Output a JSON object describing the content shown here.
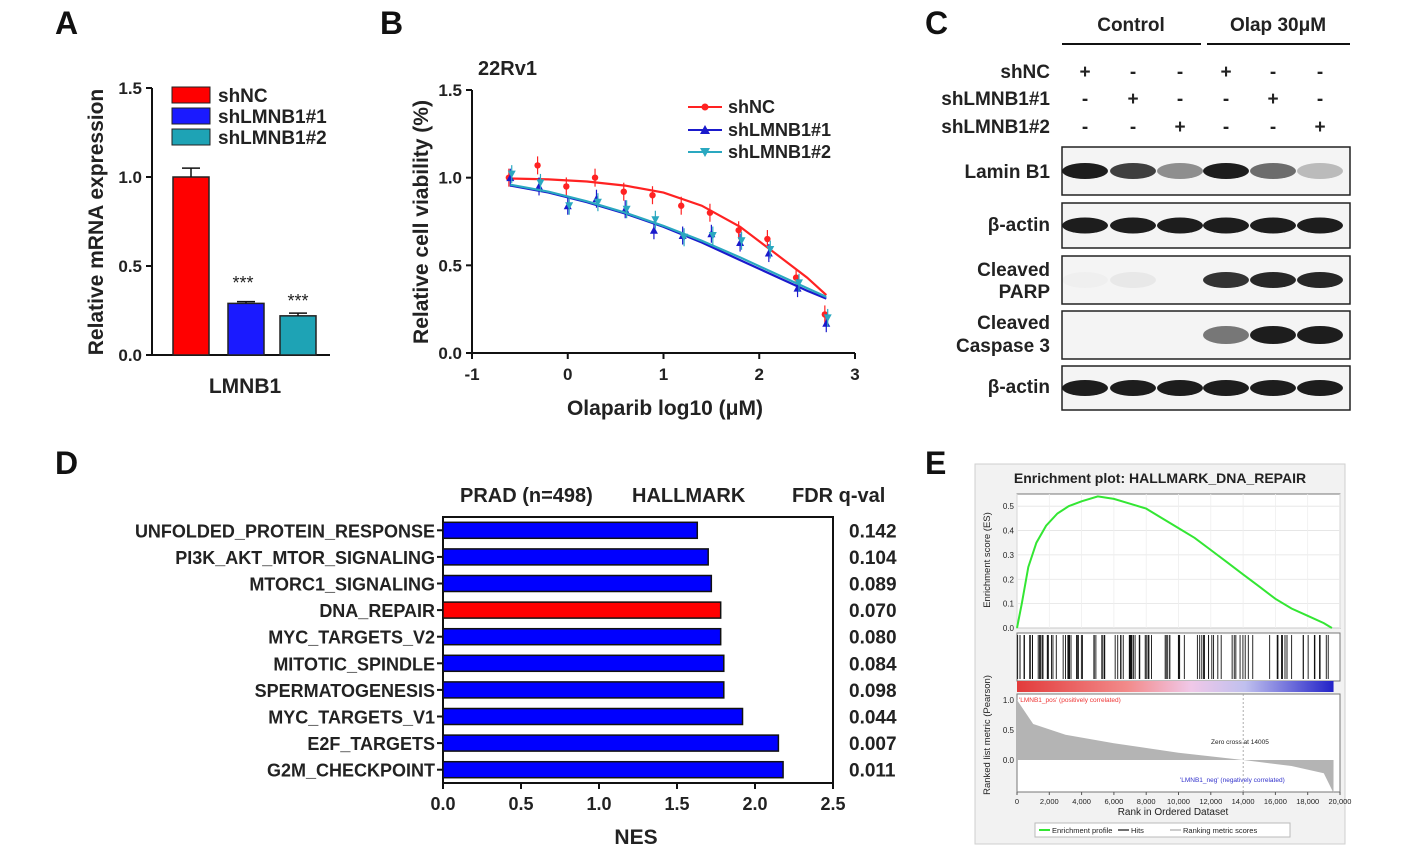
{
  "panels": {
    "A": {
      "letter": "A",
      "ylabel": "Relative mRNA expression",
      "xlabel": "LMNB1",
      "yticks": [
        "0.0",
        "0.5",
        "1.0",
        "1.5"
      ],
      "legend": [
        "shNC",
        "shLMNB1#1",
        "shLMNB1#2"
      ],
      "significance": [
        "***",
        "***"
      ]
    },
    "B": {
      "letter": "B",
      "cellline": "22Rv1",
      "ylabel": "Relative cell viability (%)",
      "xlabel": "Olaparib log10 (μM)",
      "xticks": [
        "-1",
        "0",
        "1",
        "2",
        "3"
      ],
      "yticks": [
        "0.0",
        "0.5",
        "1.0",
        "1.5"
      ],
      "legend": [
        "shNC",
        "shLMNB1#1",
        "shLMNB1#2"
      ]
    },
    "C": {
      "letter": "C",
      "groups": [
        "Control",
        "Olap 30μM"
      ],
      "rowlabels": [
        "shNC",
        "shLMNB1#1",
        "shLMNB1#2"
      ],
      "signs": [
        [
          "+",
          "-",
          "-",
          "+",
          "-",
          "-"
        ],
        [
          "-",
          "+",
          "-",
          "-",
          "+",
          "-"
        ],
        [
          "-",
          "-",
          "+",
          "-",
          "-",
          "+"
        ]
      ],
      "blots": [
        {
          "label1": "Lamin B1",
          "label2": ""
        },
        {
          "label1": "β-actin",
          "label2": ""
        },
        {
          "label1": "Cleaved",
          "label2": "PARP"
        },
        {
          "label1": "Cleaved",
          "label2": "Caspase 3"
        },
        {
          "label1": "β-actin",
          "label2": ""
        }
      ]
    },
    "D": {
      "letter": "D",
      "header_left": "PRAD (n=498)",
      "header_mid": "HALLMARK",
      "header_right": "FDR q-val",
      "xlabel": "NES",
      "xticks": [
        "0.0",
        "0.5",
        "1.0",
        "1.5",
        "2.0",
        "2.5"
      ]
    },
    "E": {
      "letter": "E",
      "title": "Enrichment plot: HALLMARK_DNA_REPAIR",
      "ylabel_top": "Enrichment score (ES)",
      "ylabel_bottom": "Ranked list metric (Pearson)",
      "xlabel": "Rank in Ordered Dataset",
      "yticks_top": [
        "0.0",
        "0.1",
        "0.2",
        "0.3",
        "0.4",
        "0.5"
      ],
      "yticks_bottom": [
        "1.0",
        "0.5",
        "0.0"
      ],
      "xticks": [
        "0",
        "2,000",
        "4,000",
        "6,000",
        "8,000",
        "10,000",
        "12,000",
        "14,000",
        "16,000",
        "18,000",
        "20,000"
      ],
      "pos_label": "'LMNB1_pos' (positively correlated)",
      "neg_label": "'LMNB1_neg' (negatively correlated)",
      "zero_cross": "Zero cross at 14005",
      "legend": [
        "Enrichment profile",
        "Hits",
        "Ranking metric scores"
      ]
    }
  },
  "colors": {
    "shNC": "#ff0000",
    "sh1": "#1a1aff",
    "sh2": "#1ea3b5",
    "bar_red": "#ff0000",
    "bar_blue": "#0000ff",
    "es_line": "#33e633"
  },
  "chart_data": [
    {
      "type": "bar",
      "panel": "A",
      "categories": [
        "shNC",
        "shLMNB1#1",
        "shLMNB1#2"
      ],
      "values": [
        1.0,
        0.29,
        0.22
      ],
      "errors": [
        0.05,
        0.01,
        0.015
      ],
      "xlabel": "LMNB1",
      "ylabel": "Relative mRNA expression",
      "ylim": [
        0,
        1.5
      ]
    },
    {
      "type": "line",
      "panel": "B",
      "title": "22Rv1",
      "xlabel": "Olaparib log10 (μM)",
      "ylabel": "Relative cell viability (%)",
      "xlim": [
        -1,
        3
      ],
      "ylim": [
        0,
        1.5
      ],
      "series": [
        {
          "name": "shNC",
          "points": [
            [
              -0.6,
              1.0
            ],
            [
              -0.3,
              1.07
            ],
            [
              0.0,
              0.95
            ],
            [
              0.3,
              1.0
            ],
            [
              0.6,
              0.92
            ],
            [
              0.9,
              0.9
            ],
            [
              1.2,
              0.84
            ],
            [
              1.5,
              0.8
            ],
            [
              1.8,
              0.7
            ],
            [
              2.1,
              0.65
            ],
            [
              2.4,
              0.43
            ],
            [
              2.7,
              0.22
            ]
          ],
          "curve": [
            [
              -0.6,
              0.995
            ],
            [
              -0.2,
              0.99
            ],
            [
              0.2,
              0.978
            ],
            [
              0.6,
              0.955
            ],
            [
              1.0,
              0.915
            ],
            [
              1.4,
              0.84
            ],
            [
              1.8,
              0.72
            ],
            [
              2.2,
              0.555
            ],
            [
              2.5,
              0.43
            ],
            [
              2.7,
              0.33
            ]
          ]
        },
        {
          "name": "shLMNB1#1",
          "points": [
            [
              -0.6,
              1.0
            ],
            [
              -0.3,
              0.95
            ],
            [
              0.0,
              0.84
            ],
            [
              0.3,
              0.88
            ],
            [
              0.6,
              0.82
            ],
            [
              0.9,
              0.7
            ],
            [
              1.2,
              0.67
            ],
            [
              1.5,
              0.68
            ],
            [
              1.8,
              0.63
            ],
            [
              2.1,
              0.57
            ],
            [
              2.4,
              0.37
            ],
            [
              2.7,
              0.17
            ]
          ],
          "curve": [
            [
              -0.6,
              0.955
            ],
            [
              -0.2,
              0.915
            ],
            [
              0.2,
              0.86
            ],
            [
              0.6,
              0.795
            ],
            [
              1.0,
              0.72
            ],
            [
              1.4,
              0.63
            ],
            [
              1.8,
              0.53
            ],
            [
              2.2,
              0.43
            ],
            [
              2.5,
              0.355
            ],
            [
              2.7,
              0.31
            ]
          ]
        },
        {
          "name": "shLMNB1#2",
          "points": [
            [
              -0.6,
              1.02
            ],
            [
              -0.3,
              0.97
            ],
            [
              0.0,
              0.84
            ],
            [
              0.3,
              0.86
            ],
            [
              0.6,
              0.82
            ],
            [
              0.9,
              0.76
            ],
            [
              1.2,
              0.66
            ],
            [
              1.5,
              0.67
            ],
            [
              1.8,
              0.64
            ],
            [
              2.1,
              0.59
            ],
            [
              2.4,
              0.4
            ],
            [
              2.7,
              0.2
            ]
          ],
          "curve": [
            [
              -0.6,
              0.96
            ],
            [
              -0.2,
              0.92
            ],
            [
              0.2,
              0.865
            ],
            [
              0.6,
              0.8
            ],
            [
              1.0,
              0.725
            ],
            [
              1.4,
              0.64
            ],
            [
              1.8,
              0.545
            ],
            [
              2.2,
              0.445
            ],
            [
              2.5,
              0.37
            ],
            [
              2.7,
              0.32
            ]
          ]
        }
      ]
    },
    {
      "type": "bar",
      "panel": "D",
      "orientation": "horizontal",
      "categories": [
        "UNFOLDED_PROTEIN_RESPONSE",
        "PI3K_AKT_MTOR_SIGNALING",
        "MTORC1_SIGNALING",
        "DNA_REPAIR",
        "MYC_TARGETS_V2",
        "MITOTIC_SPINDLE",
        "SPERMATOGENESIS",
        "MYC_TARGETS_V1",
        "E2F_TARGETS",
        "G2M_CHECKPOINT"
      ],
      "values": [
        1.63,
        1.7,
        1.72,
        1.78,
        1.78,
        1.8,
        1.8,
        1.92,
        2.15,
        2.18
      ],
      "fdr_q": [
        "0.142",
        "0.104",
        "0.089",
        "0.070",
        "0.080",
        "0.084",
        "0.098",
        "0.044",
        "0.007",
        "0.011"
      ],
      "highlight": "DNA_REPAIR",
      "xlabel": "NES",
      "xlim": [
        0,
        2.5
      ]
    },
    {
      "type": "line",
      "panel": "E",
      "title": "Enrichment plot: HALLMARK_DNA_REPAIR",
      "xlabel": "Rank in Ordered Dataset",
      "ylabel": "Enrichment score (ES)",
      "xlim": [
        0,
        20000
      ],
      "ylim": [
        0,
        0.55
      ],
      "points": [
        [
          0,
          0.0
        ],
        [
          300,
          0.1
        ],
        [
          700,
          0.25
        ],
        [
          1200,
          0.35
        ],
        [
          1800,
          0.42
        ],
        [
          2500,
          0.47
        ],
        [
          3200,
          0.5
        ],
        [
          4000,
          0.52
        ],
        [
          5000,
          0.54
        ],
        [
          6000,
          0.53
        ],
        [
          7000,
          0.51
        ],
        [
          8000,
          0.49
        ],
        [
          9000,
          0.45
        ],
        [
          10000,
          0.41
        ],
        [
          11000,
          0.37
        ],
        [
          12000,
          0.32
        ],
        [
          13000,
          0.27
        ],
        [
          14000,
          0.22
        ],
        [
          15000,
          0.17
        ],
        [
          16000,
          0.12
        ],
        [
          17000,
          0.08
        ],
        [
          18000,
          0.05
        ],
        [
          19000,
          0.02
        ],
        [
          19500,
          0.0
        ]
      ],
      "metric": [
        [
          0,
          1.0
        ],
        [
          1000,
          0.6
        ],
        [
          3000,
          0.42
        ],
        [
          6000,
          0.28
        ],
        [
          10000,
          0.12
        ],
        [
          14005,
          0.0
        ],
        [
          17000,
          -0.1
        ],
        [
          19000,
          -0.22
        ],
        [
          19600,
          -0.55
        ]
      ]
    }
  ]
}
